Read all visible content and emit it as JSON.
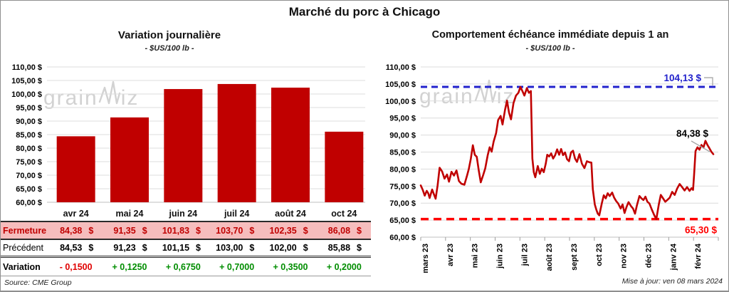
{
  "header": {
    "title": "Marché du porc à Chicago"
  },
  "colors": {
    "bar_red": "#c00000",
    "line_red": "#c00000",
    "pink_row_bg": "#f6bdbd",
    "green": "#008d00",
    "negative_red": "#e00000",
    "blue": "#2222cc",
    "dashed_min_red": "#ff0000",
    "gridline": "#dcdcdc",
    "watermark_gray": "#c7c7c7"
  },
  "left_panel": {
    "title": "Variation journalière",
    "subtitle": "- $US/100 lb -"
  },
  "right_panel": {
    "title": "Comportement échéance immédiate depuis 1 an",
    "subtitle": "- $US/100 lb -"
  },
  "chart_data": [
    {
      "type": "bar",
      "title": "Variation journalière",
      "subtitle": "- $US/100 lb -",
      "categories": [
        "avr 24",
        "mai 24",
        "juin 24",
        "juil 24",
        "août 24",
        "oct 24"
      ],
      "values": [
        84.38,
        91.35,
        101.83,
        103.7,
        102.35,
        86.08
      ],
      "ylim": [
        60,
        110
      ],
      "tick_step": 5,
      "ylabel": "$US/100 lb",
      "grid": true,
      "bar_color": "#c00000"
    },
    {
      "type": "line",
      "title": "Comportement échéance immédiate depuis 1 an",
      "subtitle": "- $US/100 lb -",
      "x_labels": [
        "mars 23",
        "avr 23",
        "mai 23",
        "juin 23",
        "juil 23",
        "août 23",
        "sept 23",
        "oct 23",
        "nov 23",
        "déc 23",
        "janv 24",
        "févr 24"
      ],
      "ylim": [
        60,
        110
      ],
      "tick_step": 5,
      "grid": true,
      "annotations": {
        "max": {
          "value": 104.13,
          "label": "104,13 $",
          "color": "#2222cc"
        },
        "min": {
          "value": 65.3,
          "label": "65,30 $",
          "color": "#ff0000"
        },
        "last": {
          "value": 84.38,
          "label": "84,38 $",
          "color": "#000000"
        }
      },
      "series": [
        {
          "name": "échéance immédiate",
          "color": "#c00000",
          "points": [
            [
              0,
              75.2
            ],
            [
              0.08,
              73.9
            ],
            [
              0.16,
              72.2
            ],
            [
              0.24,
              73.6
            ],
            [
              0.3,
              72.9
            ],
            [
              0.36,
              71.5
            ],
            [
              0.46,
              74.0
            ],
            [
              0.53,
              72.6
            ],
            [
              0.6,
              71.3
            ],
            [
              0.68,
              75.2
            ],
            [
              0.76,
              80.4
            ],
            [
              0.86,
              79.3
            ],
            [
              0.96,
              77.2
            ],
            [
              1.06,
              78.4
            ],
            [
              1.14,
              76.3
            ],
            [
              1.24,
              79.2
            ],
            [
              1.34,
              78.1
            ],
            [
              1.44,
              79.6
            ],
            [
              1.54,
              76.5
            ],
            [
              1.64,
              75.7
            ],
            [
              1.76,
              75.4
            ],
            [
              1.86,
              77.9
            ],
            [
              1.94,
              80.1
            ],
            [
              2.02,
              83.1
            ],
            [
              2.1,
              87.0
            ],
            [
              2.18,
              84.2
            ],
            [
              2.26,
              83.6
            ],
            [
              2.34,
              79.6
            ],
            [
              2.42,
              76.1
            ],
            [
              2.52,
              78.3
            ],
            [
              2.6,
              80.2
            ],
            [
              2.7,
              84.1
            ],
            [
              2.78,
              86.4
            ],
            [
              2.86,
              85.1
            ],
            [
              2.94,
              88.1
            ],
            [
              3.04,
              90.6
            ],
            [
              3.12,
              94.4
            ],
            [
              3.22,
              95.6
            ],
            [
              3.3,
              93.1
            ],
            [
              3.4,
              97.4
            ],
            [
              3.48,
              100.1
            ],
            [
              3.56,
              96.6
            ],
            [
              3.64,
              94.6
            ],
            [
              3.74,
              99.4
            ],
            [
              3.84,
              101.6
            ],
            [
              3.94,
              102.4
            ],
            [
              4.02,
              104.13
            ],
            [
              4.1,
              102.9
            ],
            [
              4.18,
              101.6
            ],
            [
              4.28,
              103.8
            ],
            [
              4.36,
              102.4
            ],
            [
              4.44,
              102.9
            ],
            [
              4.5,
              83.1
            ],
            [
              4.56,
              79.1
            ],
            [
              4.62,
              77.6
            ],
            [
              4.72,
              80.9
            ],
            [
              4.8,
              78.6
            ],
            [
              4.88,
              80.1
            ],
            [
              4.96,
              79.1
            ],
            [
              5.04,
              81.6
            ],
            [
              5.1,
              84.2
            ],
            [
              5.18,
              83.7
            ],
            [
              5.26,
              84.6
            ],
            [
              5.34,
              83.1
            ],
            [
              5.42,
              84.1
            ],
            [
              5.5,
              85.8
            ],
            [
              5.58,
              84.2
            ],
            [
              5.66,
              85.9
            ],
            [
              5.74,
              84.1
            ],
            [
              5.82,
              84.9
            ],
            [
              5.9,
              82.9
            ],
            [
              5.98,
              82.3
            ],
            [
              6.06,
              84.9
            ],
            [
              6.14,
              85.4
            ],
            [
              6.22,
              83.1
            ],
            [
              6.3,
              82.1
            ],
            [
              6.4,
              84.4
            ],
            [
              6.5,
              81.6
            ],
            [
              6.6,
              80.3
            ],
            [
              6.7,
              82.3
            ],
            [
              6.8,
              82.0
            ],
            [
              6.88,
              81.9
            ],
            [
              6.94,
              74.1
            ],
            [
              7.02,
              69.6
            ],
            [
              7.08,
              68.1
            ],
            [
              7.14,
              66.9
            ],
            [
              7.2,
              66.4
            ],
            [
              7.3,
              69.9
            ],
            [
              7.38,
              72.3
            ],
            [
              7.46,
              71.4
            ],
            [
              7.54,
              72.9
            ],
            [
              7.62,
              72.1
            ],
            [
              7.72,
              73.1
            ],
            [
              7.8,
              71.6
            ],
            [
              7.88,
              70.6
            ],
            [
              7.96,
              69.9
            ],
            [
              8.06,
              68.4
            ],
            [
              8.14,
              69.6
            ],
            [
              8.22,
              67.1
            ],
            [
              8.3,
              68.9
            ],
            [
              8.38,
              70.3
            ],
            [
              8.48,
              69.1
            ],
            [
              8.56,
              68.4
            ],
            [
              8.64,
              66.9
            ],
            [
              8.72,
              69.4
            ],
            [
              8.82,
              72.1
            ],
            [
              8.9,
              71.4
            ],
            [
              8.98,
              70.9
            ],
            [
              9.06,
              71.9
            ],
            [
              9.14,
              70.4
            ],
            [
              9.22,
              69.9
            ],
            [
              9.32,
              68.1
            ],
            [
              9.42,
              66.4
            ],
            [
              9.5,
              65.3
            ],
            [
              9.6,
              69.6
            ],
            [
              9.68,
              72.4
            ],
            [
              9.78,
              71.3
            ],
            [
              9.86,
              70.4
            ],
            [
              9.94,
              70.9
            ],
            [
              10.04,
              71.6
            ],
            [
              10.14,
              73.3
            ],
            [
              10.24,
              72.4
            ],
            [
              10.34,
              74.3
            ],
            [
              10.44,
              75.6
            ],
            [
              10.54,
              74.7
            ],
            [
              10.64,
              73.7
            ],
            [
              10.74,
              74.7
            ],
            [
              10.84,
              73.6
            ],
            [
              10.92,
              74.4
            ],
            [
              10.98,
              73.9
            ],
            [
              11.02,
              78.1
            ],
            [
              11.08,
              85.3
            ],
            [
              11.16,
              86.4
            ],
            [
              11.24,
              85.7
            ],
            [
              11.32,
              87.1
            ],
            [
              11.4,
              86.3
            ],
            [
              11.48,
              88.3
            ],
            [
              11.56,
              87.1
            ],
            [
              11.64,
              86.1
            ],
            [
              11.72,
              85.1
            ],
            [
              11.8,
              84.38
            ]
          ]
        }
      ]
    }
  ],
  "table": {
    "columns": [
      "avr 24",
      "mai 24",
      "juin 24",
      "juil 24",
      "août 24",
      "oct 24"
    ],
    "rows": [
      {
        "label": "Fermeture",
        "style": "fermeture",
        "unit": "$",
        "cells": [
          "84,38",
          "91,35",
          "101,83",
          "103,70",
          "102,35",
          "86,08"
        ]
      },
      {
        "label": "Précédent",
        "style": "precedent",
        "unit": "$",
        "cells": [
          "84,53",
          "91,23",
          "101,15",
          "103,00",
          "102,00",
          "85,88"
        ]
      },
      {
        "label": "Variation",
        "style": "variation",
        "unit": "",
        "cells": [
          "- 0,1500",
          "+ 0,1250",
          "+ 0,6750",
          "+ 0,7000",
          "+ 0,3500",
          "+ 0,2000"
        ]
      }
    ]
  },
  "watermark": {
    "left": "grain",
    "right": "iz"
  },
  "footer": {
    "source": "Source: CME Group",
    "updated": "Mise à jour: ven 08 mars 2024"
  }
}
